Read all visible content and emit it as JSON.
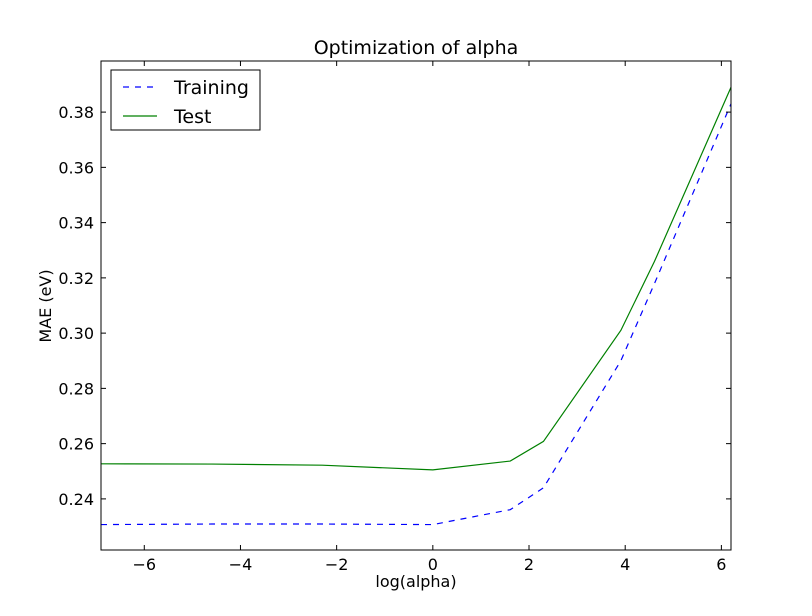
{
  "chart_data": {
    "type": "line",
    "title": "Optimization of alpha",
    "xlabel": "log(alpha)",
    "ylabel": "MAE (eV)",
    "xlim": [
      -6.9,
      6.2
    ],
    "ylim": [
      0.2215,
      0.3985
    ],
    "xticks": [
      -6,
      -4,
      -2,
      0,
      2,
      4,
      6
    ],
    "xtick_labels": [
      "−6",
      "−4",
      "−2",
      "0",
      "2",
      "4",
      "6"
    ],
    "yticks": [
      0.24,
      0.26,
      0.28,
      0.3,
      0.32,
      0.34,
      0.36,
      0.38
    ],
    "ytick_labels": [
      "0.24",
      "0.26",
      "0.28",
      "0.30",
      "0.32",
      "0.34",
      "0.36",
      "0.38"
    ],
    "grid": false,
    "legend_position": "top-left",
    "series": [
      {
        "name": "Training",
        "color": "#0000ff",
        "style": "dashed",
        "x": [
          -6.9,
          -4.6,
          -2.3,
          0,
          1.61,
          2.3,
          3.91,
          4.61,
          6.2
        ],
        "y": [
          0.2307,
          0.2309,
          0.2309,
          0.2307,
          0.2361,
          0.244,
          0.29,
          0.318,
          0.383
        ]
      },
      {
        "name": "Test",
        "color": "#008000",
        "style": "solid",
        "x": [
          -6.9,
          -4.6,
          -2.3,
          0,
          1.61,
          2.3,
          3.91,
          4.61,
          6.2
        ],
        "y": [
          0.2527,
          0.2526,
          0.2522,
          0.2505,
          0.2537,
          0.2608,
          0.301,
          0.326,
          0.389
        ]
      }
    ]
  }
}
